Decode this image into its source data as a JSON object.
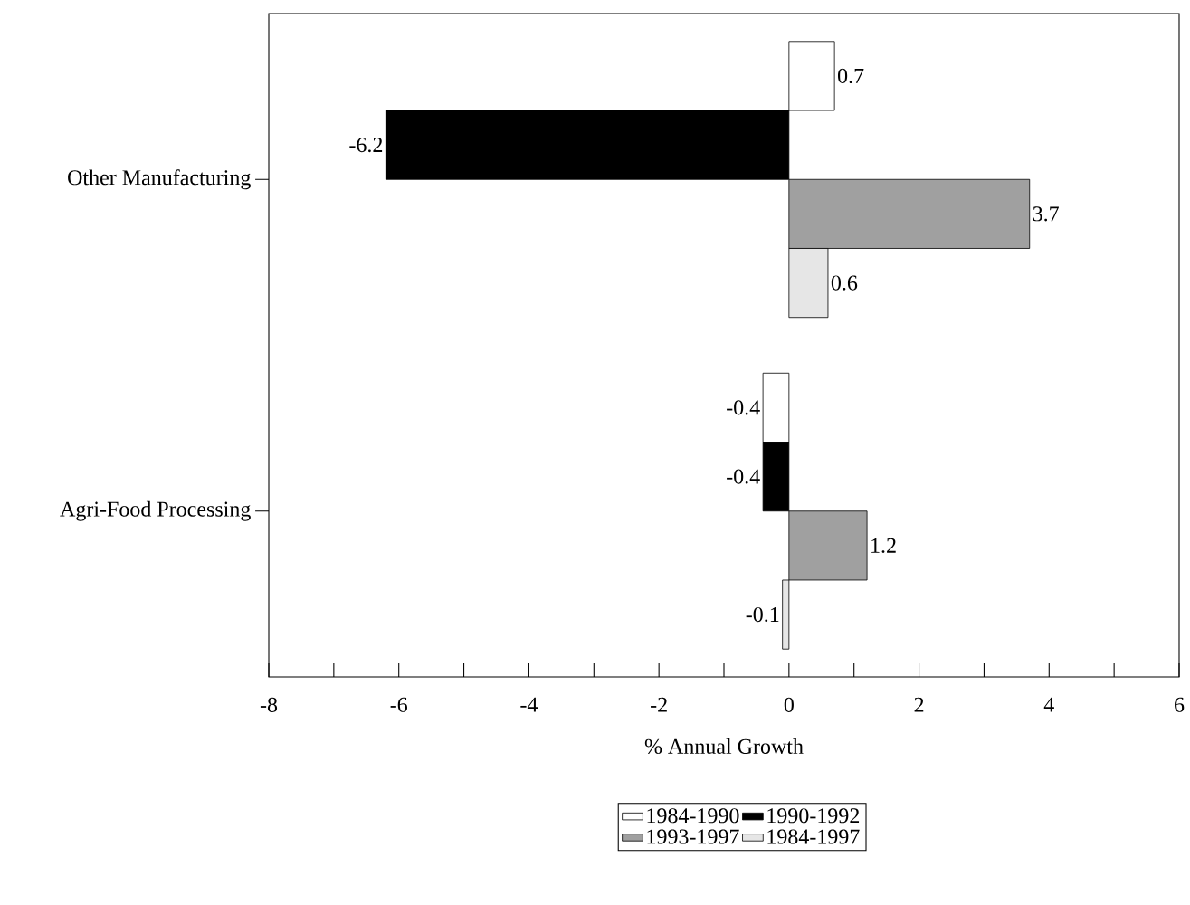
{
  "chart_data": {
    "type": "bar",
    "orientation": "horizontal",
    "xlabel": "% Annual Growth",
    "categories": [
      "Other Manufacturing",
      "Agri-Food Processing"
    ],
    "series": [
      {
        "name": "1984-1990",
        "color": "#ffffff",
        "values": [
          0.7,
          -0.4
        ]
      },
      {
        "name": "1990-1992",
        "color": "#000000",
        "values": [
          -6.2,
          -0.4
        ]
      },
      {
        "name": "1993-1997",
        "color": "#a0a0a0",
        "values": [
          3.7,
          1.2
        ]
      },
      {
        "name": "1984-1997",
        "color": "#e6e6e6",
        "values": [
          0.6,
          -0.1
        ]
      }
    ],
    "xlim": [
      -8,
      6
    ],
    "xticks": [
      -8,
      {
        "value": -7,
        "label": null
      },
      -6,
      {
        "value": -5,
        "label": null
      },
      -4,
      {
        "value": -3,
        "label": null
      },
      -2,
      {
        "value": -1,
        "label": null
      },
      0,
      {
        "value": 1,
        "label": null
      },
      2,
      {
        "value": 3,
        "label": null
      },
      4,
      {
        "value": 5,
        "label": null
      },
      6
    ],
    "data_labels": true,
    "legend": "bottom"
  }
}
